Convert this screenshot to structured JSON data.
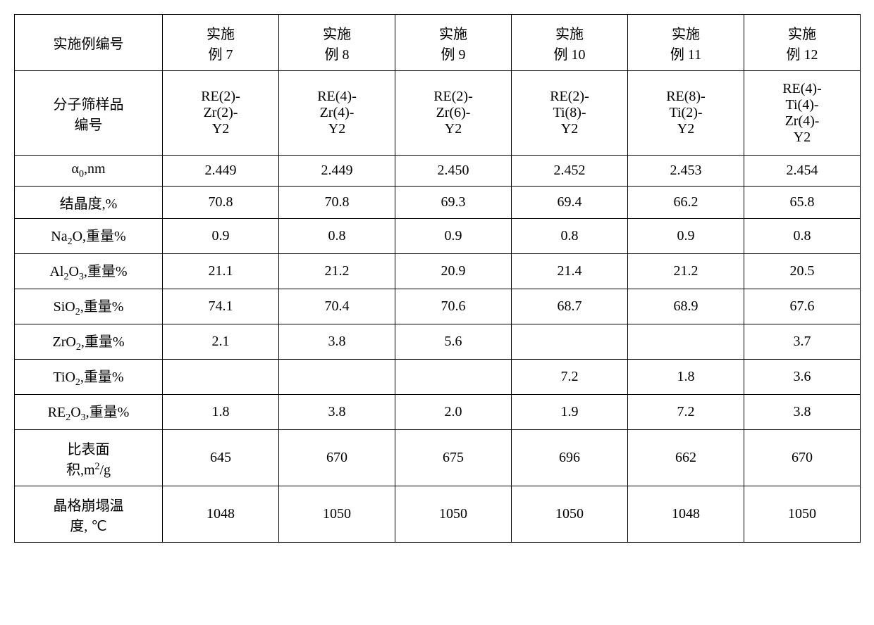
{
  "table": {
    "type": "table",
    "border_color": "#000000",
    "background_color": "#ffffff",
    "text_color": "#000000",
    "font_size_pt": 15,
    "header_row": {
      "label_html": "<span class='han'>实施例编号</span>",
      "cols": [
        "<span class='han'>实施<br>例</span> <span class='latin'>7</span>",
        "<span class='han'>实施<br>例</span> <span class='latin'>8</span>",
        "<span class='han'>实施<br>例</span> <span class='latin'>9</span>",
        "<span class='han'>实施<br>例</span> <span class='latin'>10</span>",
        "<span class='han'>实施<br>例</span> <span class='latin'>11</span>",
        "<span class='han'>实施<br>例</span> <span class='latin'>12</span>"
      ]
    },
    "rows": [
      {
        "label_html": "<span class='han'>分子筛样品<br>编号</span>",
        "height_class": "tall",
        "cells_html": [
          "<span class='latin'>RE(2)-<br>Zr(2)-<br>Y2</span>",
          "<span class='latin'>RE(4)-<br>Zr(4)-<br>Y2</span>",
          "<span class='latin'>RE(2)-<br>Zr(6)-<br>Y2</span>",
          "<span class='latin'>RE(2)-<br>Ti(8)-<br>Y2</span>",
          "<span class='latin'>RE(8)-<br>Ti(2)-<br>Y2</span>",
          "<span class='latin'>RE(4)-<br>Ti(4)-<br>Zr(4)-<br>Y2</span>"
        ]
      },
      {
        "label_html": "<span class='latin'>α<sub>0</sub>,nm</span>",
        "height_class": "short",
        "cells_html": [
          "2.449",
          "2.449",
          "2.450",
          "2.452",
          "2.453",
          "2.454"
        ]
      },
      {
        "label_html": "<span class='han'>结晶度</span><span class='latin'>,%</span>",
        "height_class": "short",
        "cells_html": [
          "70.8",
          "70.8",
          "69.3",
          "69.4",
          "66.2",
          "65.8"
        ]
      },
      {
        "label_html": "<span class='latin'>Na<sub>2</sub>O,</span><span class='han'>重量</span><span class='latin'>%</span>",
        "height_class": "short",
        "cells_html": [
          "0.9",
          "0.8",
          "0.9",
          "0.8",
          "0.9",
          "0.8"
        ]
      },
      {
        "label_html": "<span class='latin'>Al<sub>2</sub>O<sub>3</sub>,</span><span class='han'>重量</span><span class='latin'>%</span>",
        "height_class": "short",
        "cells_html": [
          "21.1",
          "21.2",
          "20.9",
          "21.4",
          "21.2",
          "20.5"
        ]
      },
      {
        "label_html": "<span class='latin'>SiO<sub>2</sub>,</span><span class='han'>重量</span><span class='latin'>%</span>",
        "height_class": "short",
        "cells_html": [
          "74.1",
          "70.4",
          "70.6",
          "68.7",
          "68.9",
          "67.6"
        ]
      },
      {
        "label_html": "<span class='latin'>ZrO<sub>2</sub>,</span><span class='han'>重量</span><span class='latin'>%</span>",
        "height_class": "short",
        "cells_html": [
          "2.1",
          "3.8",
          "5.6",
          "",
          "",
          "3.7"
        ]
      },
      {
        "label_html": "<span class='latin'>TiO<sub>2</sub>,</span><span class='han'>重量</span><span class='latin'>%</span>",
        "height_class": "short",
        "cells_html": [
          "",
          "",
          "",
          "7.2",
          "1.8",
          "3.6"
        ]
      },
      {
        "label_html": "<span class='latin'>RE<sub>2</sub>O<sub>3</sub>,</span><span class='han'>重量</span><span class='latin'>%</span>",
        "height_class": "short",
        "cells_html": [
          "1.8",
          "3.8",
          "2.0",
          "1.9",
          "7.2",
          "3.8"
        ]
      },
      {
        "label_html": "<span class='han'>比表面<br>积</span><span class='latin'>,m<sup>2</sup>/g</span>",
        "height_class": "med",
        "cells_html": [
          "645",
          "670",
          "675",
          "696",
          "662",
          "670"
        ]
      },
      {
        "label_html": "<span class='han'>晶格崩塌温<br>度</span><span class='latin'>, ℃</span>",
        "height_class": "med",
        "cells_html": [
          "1048",
          "1050",
          "1050",
          "1050",
          "1048",
          "1050"
        ]
      }
    ]
  }
}
